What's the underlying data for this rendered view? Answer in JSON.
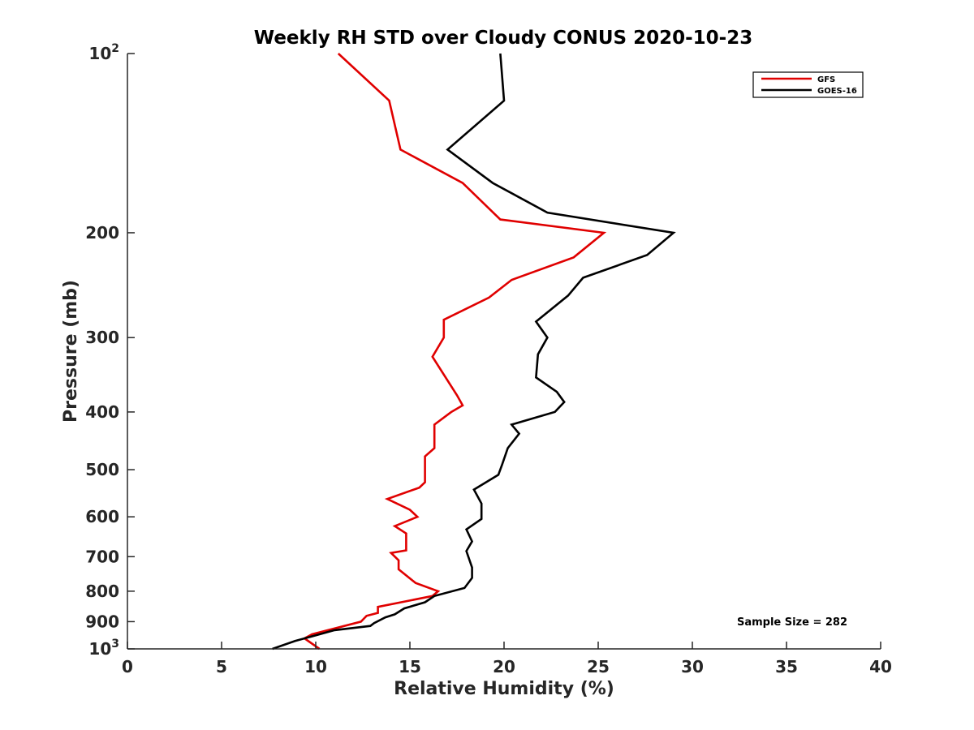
{
  "chart_data": {
    "type": "line",
    "title": "Weekly RH STD over Cloudy CONUS 2020-10-23",
    "xlabel": "Relative Humidity (%)",
    "ylabel": "Pressure (mb)",
    "xlim": [
      0,
      40
    ],
    "ylim": [
      100,
      1000
    ],
    "y_scale": "log",
    "y_reversed": true,
    "grid": false,
    "legend_position": "top-right",
    "x_ticks": [
      0,
      5,
      10,
      15,
      20,
      25,
      30,
      35,
      40
    ],
    "x_tick_labels": [
      "0",
      "5",
      "10",
      "15",
      "20",
      "25",
      "30",
      "35",
      "40"
    ],
    "y_ticks": [
      {
        "value": 100,
        "base": "10",
        "exp": "2"
      },
      {
        "value": 200,
        "label": "200"
      },
      {
        "value": 300,
        "label": "300"
      },
      {
        "value": 400,
        "label": "400"
      },
      {
        "value": 500,
        "label": "500"
      },
      {
        "value": 600,
        "label": "600"
      },
      {
        "value": 700,
        "label": "700"
      },
      {
        "value": 800,
        "label": "800"
      },
      {
        "value": 900,
        "label": "900"
      },
      {
        "value": 1000,
        "base": "10",
        "exp": "3"
      }
    ],
    "annotation": "Sample Size = 282",
    "series": [
      {
        "name": "GFS",
        "color": "#e00000",
        "points": [
          {
            "x": 11.2,
            "y": 100
          },
          {
            "x": 13.9,
            "y": 120
          },
          {
            "x": 14.5,
            "y": 145
          },
          {
            "x": 17.8,
            "y": 165
          },
          {
            "x": 19.8,
            "y": 190
          },
          {
            "x": 25.3,
            "y": 200
          },
          {
            "x": 23.7,
            "y": 220
          },
          {
            "x": 20.4,
            "y": 240
          },
          {
            "x": 19.2,
            "y": 257
          },
          {
            "x": 16.8,
            "y": 280
          },
          {
            "x": 16.8,
            "y": 300
          },
          {
            "x": 16.2,
            "y": 323
          },
          {
            "x": 17.5,
            "y": 375
          },
          {
            "x": 17.8,
            "y": 390
          },
          {
            "x": 17.2,
            "y": 400
          },
          {
            "x": 16.3,
            "y": 420
          },
          {
            "x": 16.3,
            "y": 460
          },
          {
            "x": 15.8,
            "y": 475
          },
          {
            "x": 15.8,
            "y": 525
          },
          {
            "x": 15.5,
            "y": 536
          },
          {
            "x": 13.8,
            "y": 560
          },
          {
            "x": 15.0,
            "y": 584
          },
          {
            "x": 15.4,
            "y": 600
          },
          {
            "x": 14.2,
            "y": 622
          },
          {
            "x": 14.8,
            "y": 640
          },
          {
            "x": 14.8,
            "y": 683
          },
          {
            "x": 14.0,
            "y": 690
          },
          {
            "x": 14.4,
            "y": 710
          },
          {
            "x": 14.4,
            "y": 735
          },
          {
            "x": 15.3,
            "y": 775
          },
          {
            "x": 16.5,
            "y": 800
          },
          {
            "x": 16.2,
            "y": 815
          },
          {
            "x": 13.3,
            "y": 850
          },
          {
            "x": 13.3,
            "y": 870
          },
          {
            "x": 12.7,
            "y": 880
          },
          {
            "x": 12.4,
            "y": 900
          },
          {
            "x": 9.8,
            "y": 945
          },
          {
            "x": 9.4,
            "y": 960
          },
          {
            "x": 10.2,
            "y": 1000
          }
        ]
      },
      {
        "name": "GOES-16",
        "color": "#000000",
        "points": [
          {
            "x": 19.8,
            "y": 100
          },
          {
            "x": 20.0,
            "y": 120
          },
          {
            "x": 17.0,
            "y": 145
          },
          {
            "x": 19.4,
            "y": 165
          },
          {
            "x": 22.3,
            "y": 185
          },
          {
            "x": 29.0,
            "y": 200
          },
          {
            "x": 27.6,
            "y": 218
          },
          {
            "x": 24.2,
            "y": 238
          },
          {
            "x": 23.4,
            "y": 255
          },
          {
            "x": 21.7,
            "y": 282
          },
          {
            "x": 22.3,
            "y": 300
          },
          {
            "x": 21.8,
            "y": 320
          },
          {
            "x": 21.7,
            "y": 350
          },
          {
            "x": 22.8,
            "y": 370
          },
          {
            "x": 23.2,
            "y": 385
          },
          {
            "x": 22.7,
            "y": 400
          },
          {
            "x": 20.4,
            "y": 420
          },
          {
            "x": 20.8,
            "y": 435
          },
          {
            "x": 20.2,
            "y": 460
          },
          {
            "x": 19.9,
            "y": 490
          },
          {
            "x": 19.7,
            "y": 510
          },
          {
            "x": 18.4,
            "y": 540
          },
          {
            "x": 18.8,
            "y": 570
          },
          {
            "x": 18.8,
            "y": 605
          },
          {
            "x": 18.0,
            "y": 630
          },
          {
            "x": 18.3,
            "y": 660
          },
          {
            "x": 18.0,
            "y": 685
          },
          {
            "x": 18.3,
            "y": 730
          },
          {
            "x": 18.3,
            "y": 760
          },
          {
            "x": 17.9,
            "y": 790
          },
          {
            "x": 16.3,
            "y": 815
          },
          {
            "x": 15.8,
            "y": 835
          },
          {
            "x": 14.7,
            "y": 855
          },
          {
            "x": 14.2,
            "y": 875
          },
          {
            "x": 13.7,
            "y": 885
          },
          {
            "x": 13.1,
            "y": 905
          },
          {
            "x": 12.9,
            "y": 915
          },
          {
            "x": 11.0,
            "y": 930
          },
          {
            "x": 8.9,
            "y": 970
          },
          {
            "x": 7.7,
            "y": 1000
          }
        ]
      }
    ]
  }
}
